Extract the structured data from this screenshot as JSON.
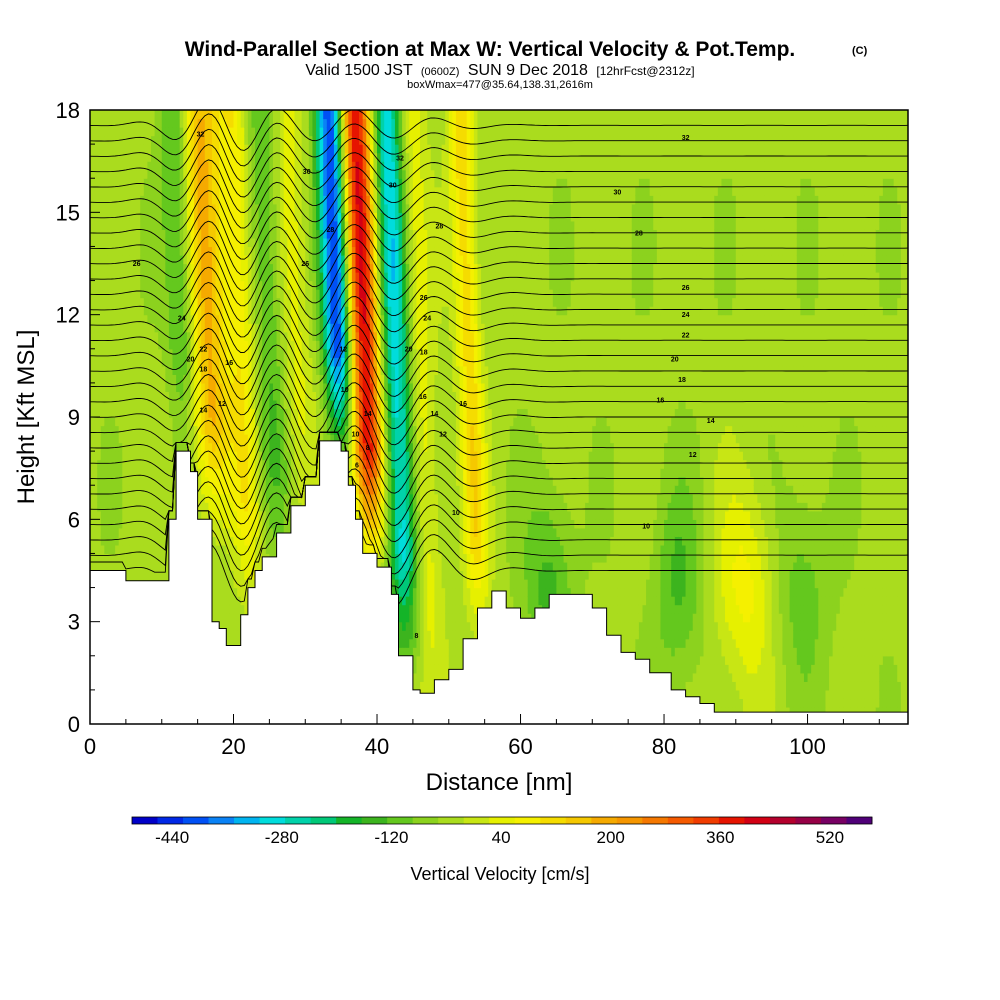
{
  "chart_data": {
    "type": "heatmap",
    "title": "Wind-Parallel Section at Max W: Vertical Velocity & Pot.Temp.",
    "title_suffix": "(C)",
    "subtitle_parts": {
      "valid": "Valid 1500 JST",
      "utc": "(0600Z)",
      "date": "SUN 9 Dec 2018",
      "forecast": "[12hrFcst@2312z]"
    },
    "box_text": "boxWmax=477@35.64,138.31,2616m",
    "xlabel": "Distance [nm]",
    "ylabel": "Height [Kft MSL]",
    "xlim": [
      0,
      114
    ],
    "ylim": [
      0,
      18
    ],
    "x_ticks": [
      "0",
      "20",
      "40",
      "60",
      "80",
      "100"
    ],
    "x_tick_values": [
      0,
      20,
      40,
      60,
      80,
      100
    ],
    "y_ticks": [
      "0",
      "3",
      "6",
      "9",
      "12",
      "15",
      "18"
    ],
    "y_tick_values": [
      0,
      3,
      6,
      9,
      12,
      15,
      18
    ],
    "colorbar": {
      "title": "Vertical Velocity [cm/s]",
      "min": -480,
      "max": 600,
      "step": 40,
      "tick_labels": [
        "-440",
        "-280",
        "-120",
        "40",
        "200",
        "360",
        "520"
      ],
      "tick_values": [
        -440,
        -280,
        -120,
        40,
        200,
        360,
        520
      ],
      "colors": [
        "#0000c8",
        "#0028e6",
        "#0050f5",
        "#0a82f5",
        "#00b4f0",
        "#00dcdc",
        "#00d2aa",
        "#00c878",
        "#14b428",
        "#3cb41e",
        "#64c81e",
        "#8cd21e",
        "#aadc1e",
        "#c8e614",
        "#e6f000",
        "#f5f000",
        "#f5dc00",
        "#f5c800",
        "#f5aa00",
        "#f59600",
        "#f57800",
        "#f55a00",
        "#f03c00",
        "#e61400",
        "#d20014",
        "#b4002d",
        "#960046",
        "#780064",
        "#500078"
      ]
    },
    "terrain_kft": [
      [
        0,
        4.5
      ],
      [
        5,
        4.5
      ],
      [
        5,
        4.2
      ],
      [
        11,
        4.2
      ],
      [
        11,
        6
      ],
      [
        12,
        6
      ],
      [
        12,
        8
      ],
      [
        14,
        8
      ],
      [
        14,
        7.4
      ],
      [
        15,
        7.4
      ],
      [
        15,
        6
      ],
      [
        17,
        6
      ],
      [
        17,
        3
      ],
      [
        18,
        3
      ],
      [
        18,
        2.8
      ],
      [
        19,
        2.8
      ],
      [
        19,
        2.3
      ],
      [
        21,
        2.3
      ],
      [
        21,
        3.2
      ],
      [
        22,
        3.2
      ],
      [
        22,
        4
      ],
      [
        23,
        4
      ],
      [
        23,
        4.5
      ],
      [
        24,
        4.5
      ],
      [
        24,
        4.9
      ],
      [
        26,
        4.9
      ],
      [
        26,
        5.6
      ],
      [
        28,
        5.6
      ],
      [
        28,
        6.4
      ],
      [
        30,
        6.4
      ],
      [
        30,
        7
      ],
      [
        32,
        7
      ],
      [
        32,
        8.3
      ],
      [
        35,
        8.3
      ],
      [
        35,
        8
      ],
      [
        36,
        8
      ],
      [
        36,
        7
      ],
      [
        37,
        7
      ],
      [
        37,
        6
      ],
      [
        38,
        6
      ],
      [
        38,
        5
      ],
      [
        40,
        5
      ],
      [
        40,
        4.6
      ],
      [
        42,
        4.6
      ],
      [
        42,
        3.8
      ],
      [
        43,
        3.8
      ],
      [
        43,
        2
      ],
      [
        45,
        2
      ],
      [
        45,
        1
      ],
      [
        46,
        1
      ],
      [
        46,
        0.9
      ],
      [
        48,
        0.9
      ],
      [
        48,
        1.3
      ],
      [
        50,
        1.3
      ],
      [
        50,
        1.6
      ],
      [
        52,
        1.6
      ],
      [
        52,
        2.5
      ],
      [
        54,
        2.5
      ],
      [
        54,
        3.4
      ],
      [
        56,
        3.4
      ],
      [
        56,
        3.9
      ],
      [
        58,
        3.9
      ],
      [
        58,
        3.4
      ],
      [
        60,
        3.4
      ],
      [
        60,
        3.1
      ],
      [
        62,
        3.1
      ],
      [
        62,
        3.4
      ],
      [
        64,
        3.4
      ],
      [
        64,
        3.8
      ],
      [
        70,
        3.8
      ],
      [
        70,
        3.4
      ],
      [
        72,
        3.4
      ],
      [
        72,
        2.6
      ],
      [
        74,
        2.6
      ],
      [
        74,
        2.1
      ],
      [
        76,
        2.1
      ],
      [
        76,
        1.9
      ],
      [
        78,
        1.9
      ],
      [
        78,
        1.5
      ],
      [
        81,
        1.5
      ],
      [
        81,
        1
      ],
      [
        83,
        1
      ],
      [
        83,
        0.8
      ],
      [
        85,
        0.8
      ],
      [
        85,
        0.6
      ],
      [
        87,
        0.6
      ],
      [
        87,
        0.35
      ],
      [
        114,
        0.35
      ]
    ],
    "updraft_cores": [
      {
        "x": 38.6,
        "w": 1.6,
        "value": 477
      },
      {
        "x": 16.8,
        "w": 2.0,
        "value": 240
      },
      {
        "x": 21.5,
        "w": 1.4,
        "value": 130
      },
      {
        "x": 53.2,
        "w": 1.2,
        "value": 170
      },
      {
        "x": 91.5,
        "w": 3.0,
        "value": 120
      },
      {
        "x": 29.0,
        "w": 1.6,
        "value": 80
      },
      {
        "x": 46.0,
        "w": 1.5,
        "value": 110
      }
    ],
    "downdraft_cores": [
      {
        "x": 35.0,
        "w": 1.4,
        "value": -440
      },
      {
        "x": 43.0,
        "w": 1.6,
        "value": -300
      },
      {
        "x": 13.5,
        "w": 1.5,
        "value": -140
      },
      {
        "x": 25.5,
        "w": 1.6,
        "value": -100
      },
      {
        "x": 64.0,
        "w": 2.5,
        "value": -110
      },
      {
        "x": 82.0,
        "w": 2.5,
        "value": -100
      },
      {
        "x": 99.0,
        "w": 3.0,
        "value": -80
      }
    ],
    "isentrope_labels": [
      {
        "x": 15.4,
        "y": 17.3,
        "text": "32"
      },
      {
        "x": 6.5,
        "y": 13.5,
        "text": "26"
      },
      {
        "x": 30.2,
        "y": 16.2,
        "text": "30"
      },
      {
        "x": 33.5,
        "y": 14.5,
        "text": "28"
      },
      {
        "x": 30.0,
        "y": 13.5,
        "text": "26"
      },
      {
        "x": 12.8,
        "y": 11.9,
        "text": "24"
      },
      {
        "x": 15.8,
        "y": 11.0,
        "text": "22"
      },
      {
        "x": 14.0,
        "y": 10.7,
        "text": "20"
      },
      {
        "x": 15.8,
        "y": 10.4,
        "text": "18"
      },
      {
        "x": 19.4,
        "y": 10.6,
        "text": "16"
      },
      {
        "x": 15.8,
        "y": 9.2,
        "text": "14"
      },
      {
        "x": 18.4,
        "y": 9.4,
        "text": "12"
      },
      {
        "x": 35.3,
        "y": 11.0,
        "text": "12"
      },
      {
        "x": 35.5,
        "y": 9.8,
        "text": "10"
      },
      {
        "x": 37.0,
        "y": 8.5,
        "text": "10"
      },
      {
        "x": 38.7,
        "y": 9.1,
        "text": "14"
      },
      {
        "x": 37.2,
        "y": 7.6,
        "text": "6"
      },
      {
        "x": 38.7,
        "y": 8.1,
        "text": "8"
      },
      {
        "x": 43.2,
        "y": 16.6,
        "text": "32"
      },
      {
        "x": 42.2,
        "y": 15.8,
        "text": "30"
      },
      {
        "x": 48.7,
        "y": 14.6,
        "text": "28"
      },
      {
        "x": 46.5,
        "y": 12.5,
        "text": "26"
      },
      {
        "x": 47.0,
        "y": 11.9,
        "text": "24"
      },
      {
        "x": 44.4,
        "y": 11.0,
        "text": "20"
      },
      {
        "x": 46.5,
        "y": 10.9,
        "text": "18"
      },
      {
        "x": 46.4,
        "y": 9.6,
        "text": "16"
      },
      {
        "x": 48.0,
        "y": 9.1,
        "text": "14"
      },
      {
        "x": 52.0,
        "y": 9.4,
        "text": "16"
      },
      {
        "x": 49.2,
        "y": 8.5,
        "text": "12"
      },
      {
        "x": 51.0,
        "y": 6.2,
        "text": "10"
      },
      {
        "x": 45.5,
        "y": 2.6,
        "text": "8"
      },
      {
        "x": 83.0,
        "y": 17.2,
        "text": "32"
      },
      {
        "x": 73.5,
        "y": 15.6,
        "text": "30"
      },
      {
        "x": 76.5,
        "y": 14.4,
        "text": "28"
      },
      {
        "x": 83.0,
        "y": 12.8,
        "text": "26"
      },
      {
        "x": 83.0,
        "y": 12.0,
        "text": "24"
      },
      {
        "x": 83.0,
        "y": 11.4,
        "text": "22"
      },
      {
        "x": 81.5,
        "y": 10.7,
        "text": "20"
      },
      {
        "x": 82.5,
        "y": 10.1,
        "text": "18"
      },
      {
        "x": 79.5,
        "y": 9.5,
        "text": "16"
      },
      {
        "x": 86.5,
        "y": 8.9,
        "text": "14"
      },
      {
        "x": 84.0,
        "y": 7.9,
        "text": "12"
      },
      {
        "x": 77.5,
        "y": 5.8,
        "text": "10"
      }
    ]
  }
}
